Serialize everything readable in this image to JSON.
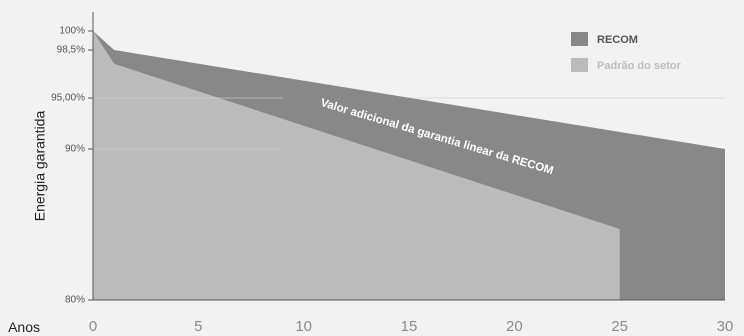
{
  "chart_data": {
    "type": "area",
    "ylabel": "Energia garantida",
    "xlabel": "Anos",
    "xlim": [
      0,
      30
    ],
    "ylim": [
      80,
      100
    ],
    "x_ticks": [
      "0",
      "5",
      "10",
      "15",
      "20",
      "25",
      "30"
    ],
    "y_ticks": [
      {
        "value": 100,
        "label": "100%"
      },
      {
        "value": 98.5,
        "label": "98,5%"
      },
      {
        "value": 95,
        "label": "95,00%"
      },
      {
        "value": 90,
        "label": "90%"
      },
      {
        "value": 80,
        "label": "80%"
      }
    ],
    "series": [
      {
        "name": "RECOM",
        "color": "#888888",
        "x": [
          0,
          1,
          30,
          30
        ],
        "y": [
          100,
          98.5,
          90,
          80
        ]
      },
      {
        "name": "Padrão do setor",
        "color": "#bbbbbb",
        "x": [
          0,
          1,
          25,
          25
        ],
        "y": [
          100,
          97.5,
          84.7,
          80
        ]
      }
    ],
    "legend_position": "top-right",
    "annotation": "Valor adicional da garantia linear da RECOM"
  }
}
